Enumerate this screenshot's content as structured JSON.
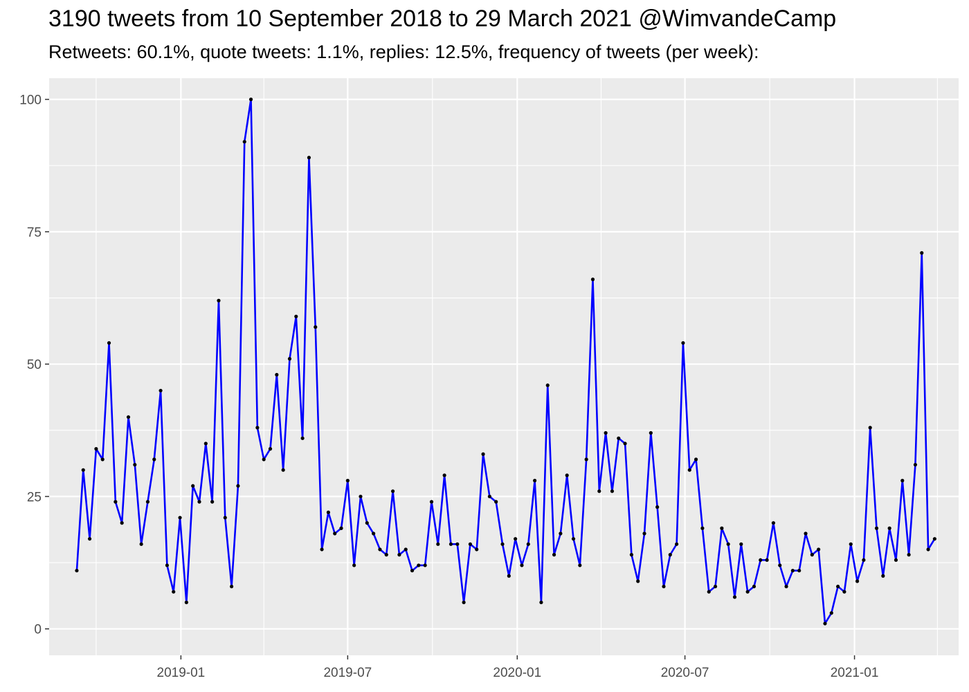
{
  "chart_data": {
    "type": "line",
    "title": "3190 tweets from 10 September 2018 to 29 March 2021 @WimvandeCamp",
    "subtitle": "Retweets: 60.1%, quote tweets: 1.1%, replies: 12.5%, frequency of tweets (per week):",
    "xlabel": "",
    "ylabel": "",
    "x_start_date": "2018-09-10",
    "x_interval": "1 week",
    "xlim": [
      "2018-08-11",
      "2021-04-24"
    ],
    "ylim": [
      -5,
      104
    ],
    "y_ticks": [
      0,
      25,
      50,
      75,
      100
    ],
    "x_ticks": [
      {
        "label": "2019-01",
        "date": "2019-01-01"
      },
      {
        "label": "2019-07",
        "date": "2019-07-01"
      },
      {
        "label": "2020-01",
        "date": "2020-01-01"
      },
      {
        "label": "2020-07",
        "date": "2020-07-01"
      },
      {
        "label": "2021-01",
        "date": "2021-01-01"
      }
    ],
    "x_minor_ticks": [
      "2018-10-01",
      "2019-04-01",
      "2019-10-01",
      "2020-04-01",
      "2020-10-01",
      "2021-04-01"
    ],
    "grid": true,
    "colors": {
      "panel_bg": "#ebebeb",
      "grid": "#ffffff",
      "line": "#0000ff",
      "point": "#000000"
    },
    "series": [
      {
        "values": [
          11,
          30,
          17,
          34,
          32,
          54,
          24,
          20,
          40,
          31,
          16,
          24,
          32,
          45,
          12,
          7,
          21,
          5,
          27,
          24,
          35,
          24,
          62,
          21,
          8,
          27,
          92,
          100,
          38,
          32,
          34,
          48,
          30,
          51,
          59,
          36,
          89,
          57,
          15,
          22,
          18,
          19,
          28,
          12,
          25,
          20,
          18,
          15,
          14,
          26,
          14,
          15,
          11,
          12,
          12,
          24,
          16,
          29,
          16,
          16,
          5,
          16,
          15,
          33,
          25,
          24,
          16,
          10,
          17,
          12,
          16,
          28,
          5,
          46,
          14,
          18,
          29,
          17,
          12,
          32,
          66,
          26,
          37,
          26,
          36,
          35,
          14,
          9,
          18,
          37,
          23,
          8,
          14,
          16,
          54,
          30,
          32,
          19,
          7,
          8,
          19,
          16,
          6,
          16,
          7,
          8,
          13,
          13,
          20,
          12,
          8,
          11,
          11,
          18,
          14,
          15,
          1,
          3,
          8,
          7,
          16,
          9,
          13,
          38,
          19,
          10,
          19,
          13,
          28,
          14,
          31,
          71,
          15,
          17
        ]
      }
    ]
  }
}
